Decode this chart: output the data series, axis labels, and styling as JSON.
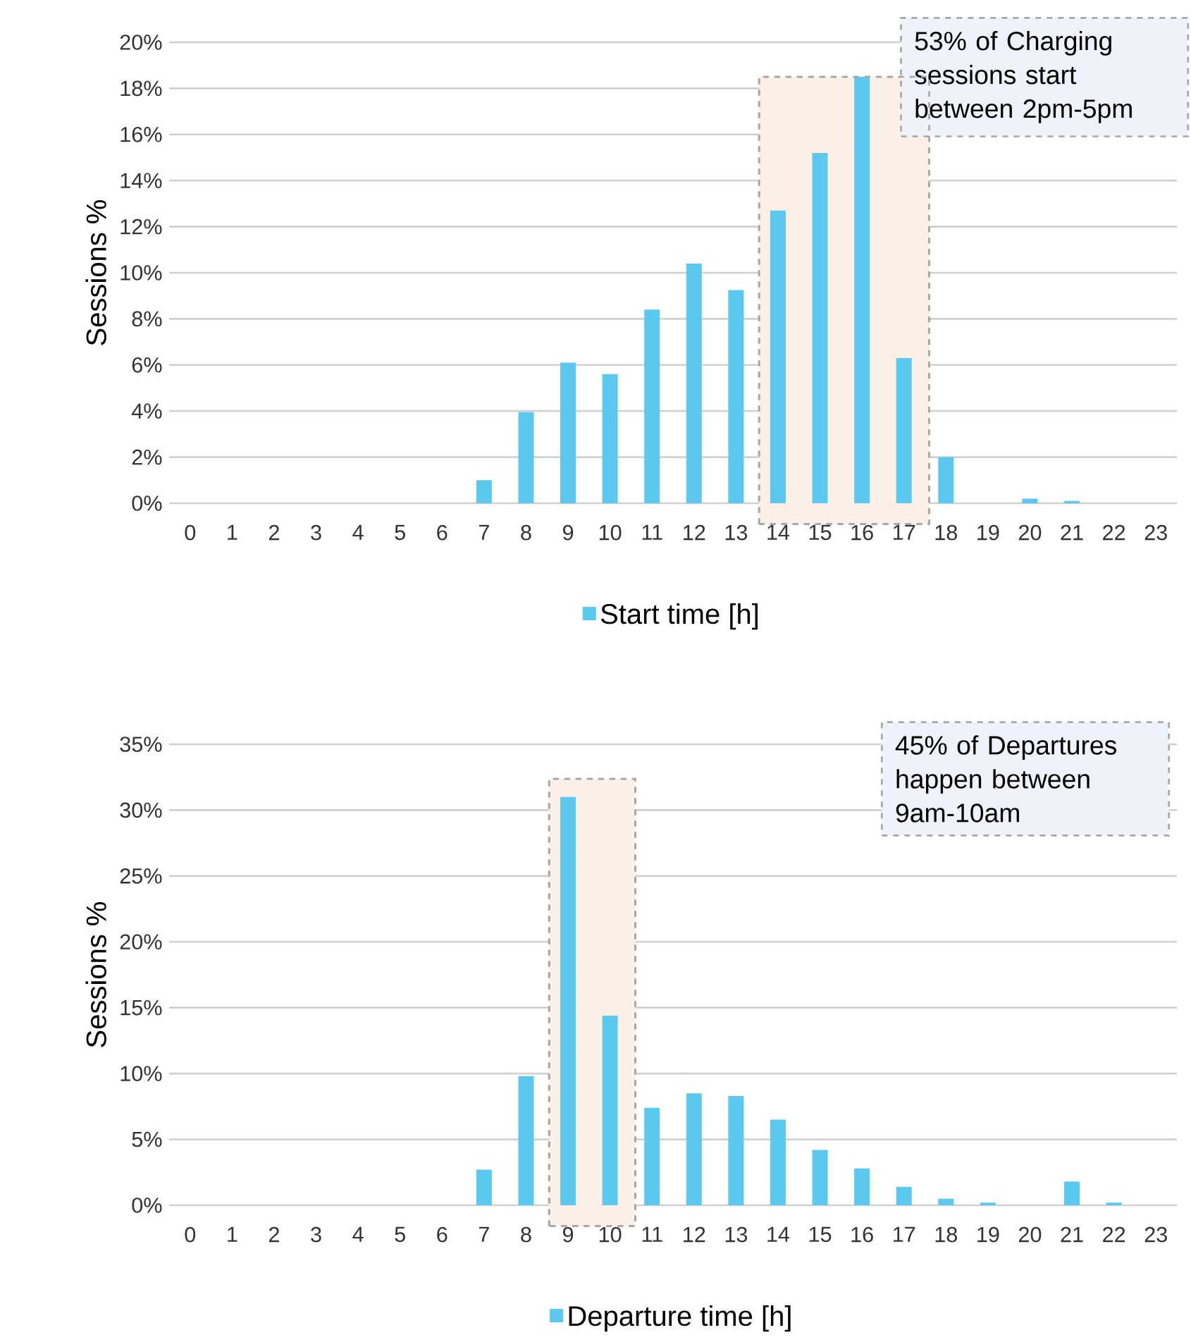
{
  "chart_data": [
    {
      "type": "bar",
      "ylabel": "Sessions %",
      "x": [
        0,
        1,
        2,
        3,
        4,
        5,
        6,
        7,
        8,
        9,
        10,
        11,
        12,
        13,
        14,
        15,
        16,
        17,
        18,
        19,
        20,
        21,
        22,
        23
      ],
      "series": [
        {
          "name": "Start  time [h]",
          "color": "#5bc8f0",
          "values": [
            0,
            0,
            0,
            0,
            0,
            0,
            0,
            1.0,
            3.95,
            6.1,
            5.6,
            8.4,
            10.4,
            9.25,
            12.7,
            15.2,
            18.5,
            6.3,
            2.0,
            0,
            0.2,
            0.1,
            0,
            0
          ]
        }
      ],
      "xlim": [
        -0.5,
        23.5
      ],
      "xticks": [
        0,
        1,
        2,
        3,
        4,
        5,
        6,
        7,
        8,
        9,
        10,
        11,
        12,
        13,
        14,
        15,
        16,
        17,
        18,
        19,
        20,
        21,
        22,
        23
      ],
      "ylim": [
        0,
        20
      ],
      "yticks": [
        {
          "value": 0,
          "label": "0%"
        },
        {
          "value": 2,
          "label": "2%"
        },
        {
          "value": 4,
          "label": "4%"
        },
        {
          "value": 6,
          "label": "6%"
        },
        {
          "value": 8,
          "label": "8%"
        },
        {
          "value": 10,
          "label": "10%"
        },
        {
          "value": 12,
          "label": "12%"
        },
        {
          "value": 14,
          "label": "14%"
        },
        {
          "value": 16,
          "label": "16%"
        },
        {
          "value": 18,
          "label": "18%"
        },
        {
          "value": 20,
          "label": "20%"
        }
      ],
      "bands": [
        {
          "axis": "x",
          "from": 13.55,
          "to": 17.6,
          "color": "#fcefe6"
        }
      ],
      "annotations": [
        "53% of Charging sessions start between 2pm-5pm"
      ],
      "grid": "y",
      "legend": "bottom"
    },
    {
      "type": "bar",
      "ylabel": "Sessions %",
      "x": [
        0,
        1,
        2,
        3,
        4,
        5,
        6,
        7,
        8,
        9,
        10,
        11,
        12,
        13,
        14,
        15,
        16,
        17,
        18,
        19,
        20,
        21,
        22,
        23
      ],
      "series": [
        {
          "name": "Departure time [h]",
          "color": "#5bc8f0",
          "values": [
            0,
            0,
            0,
            0,
            0,
            0,
            0,
            2.7,
            9.8,
            31.0,
            14.4,
            7.4,
            8.5,
            8.3,
            6.5,
            4.2,
            2.8,
            1.4,
            0.5,
            0.2,
            0,
            1.8,
            0.2,
            0
          ]
        }
      ],
      "xlim": [
        -0.5,
        23.5
      ],
      "xticks": [
        0,
        1,
        2,
        3,
        4,
        5,
        6,
        7,
        8,
        9,
        10,
        11,
        12,
        13,
        14,
        15,
        16,
        17,
        18,
        19,
        20,
        21,
        22,
        23
      ],
      "ylim": [
        0,
        35
      ],
      "yticks": [
        {
          "value": 0,
          "label": "0%"
        },
        {
          "value": 5,
          "label": "5%"
        },
        {
          "value": 10,
          "label": "10%"
        },
        {
          "value": 15,
          "label": "15%"
        },
        {
          "value": 20,
          "label": "20%"
        },
        {
          "value": 25,
          "label": "25%"
        },
        {
          "value": 30,
          "label": "30%"
        },
        {
          "value": 35,
          "label": "35%"
        }
      ],
      "bands": [
        {
          "axis": "x",
          "from": 8.55,
          "to": 10.6,
          "color": "#fcefe6"
        }
      ],
      "annotations": [
        "45% of Departures happen between 9am-10am"
      ],
      "grid": "y",
      "legend": "bottom"
    }
  ]
}
